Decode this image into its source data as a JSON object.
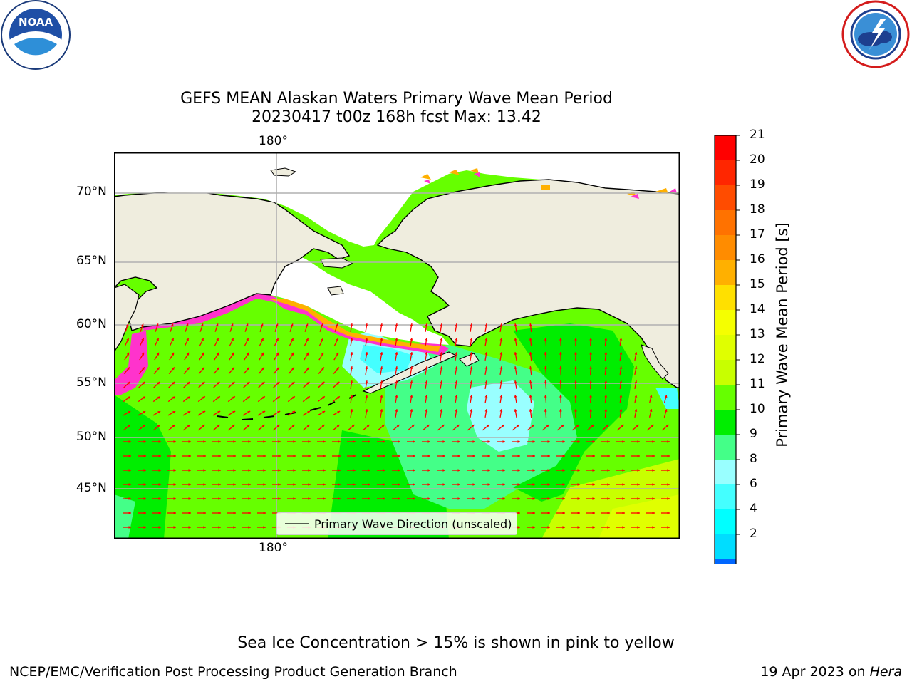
{
  "title": {
    "line1": "GEFS MEAN Alaskan Waters Primary Wave Mean Period",
    "line2": "20230417 t00z 168h fcst   Max: 13.42"
  },
  "logos": {
    "left": "NOAA",
    "right_icon": "nws-logo-icon"
  },
  "map": {
    "lon_label_top": "180°",
    "lon_label_bottom": "180°",
    "lat_labels": [
      "70°N",
      "65°N",
      "60°N",
      "55°N",
      "50°N",
      "45°N"
    ],
    "legend_label": "Primary Wave Direction (unscaled)",
    "colors": {
      "land": "#efedde",
      "ice": "#ffffff",
      "arrow": "#ff0000"
    }
  },
  "colorbar": {
    "label": "Primary Wave Mean Period [s]",
    "ticks": [
      "21",
      "20",
      "19",
      "18",
      "17",
      "16",
      "15",
      "14",
      "13",
      "12",
      "11",
      "10",
      "9",
      "8",
      "6",
      "4",
      "2"
    ],
    "colors": [
      "#ff0000",
      "#ff2600",
      "#ff4c00",
      "#ff7200",
      "#ff8c00",
      "#ffb000",
      "#ffe000",
      "#f5ff00",
      "#e0ff00",
      "#c8ff00",
      "#66ff00",
      "#00ee00",
      "#44ff88",
      "#99ffff",
      "#44ffff",
      "#00ffff",
      "#00ddff",
      "#0066ff"
    ],
    "extend_color": "#0000ff"
  },
  "note": "Sea Ice Concentration > 15% is shown in pink to yellow",
  "footer": {
    "left": "NCEP/EMC/Verification Post Processing Product Generation Branch",
    "right_prefix": "19 Apr 2023 on ",
    "right_host": "Hera"
  }
}
